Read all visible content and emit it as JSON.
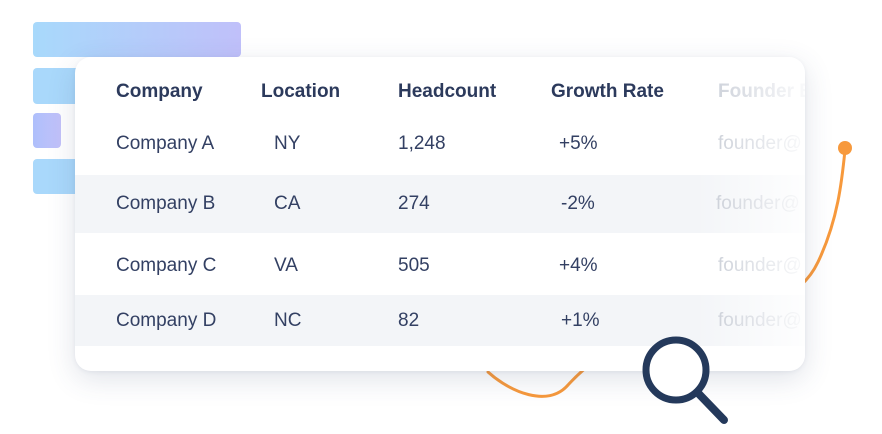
{
  "table": {
    "headers": [
      "Company",
      "Location",
      "Headcount",
      "Growth Rate",
      "Founder E"
    ],
    "rows": [
      {
        "company": "Company A",
        "location": "NY",
        "headcount": "1,248",
        "growth": "+5%",
        "founder": "founder@"
      },
      {
        "company": "Company B",
        "location": "CA",
        "headcount": "274",
        "growth": "-2%",
        "founder": "founder@"
      },
      {
        "company": "Company C",
        "location": "VA",
        "headcount": "505",
        "growth": "+4%",
        "founder": "founder@"
      },
      {
        "company": "Company D",
        "location": "NC",
        "headcount": "82",
        "growth": "+1%",
        "founder": "founder@"
      }
    ]
  },
  "colors": {
    "accent_line": "#f7993c",
    "magnifier": "#24395b",
    "bar_blue": "#a9d8fb",
    "bar_purple": "#c0c0fa"
  },
  "icons": {
    "search": "magnifying-glass-icon"
  }
}
